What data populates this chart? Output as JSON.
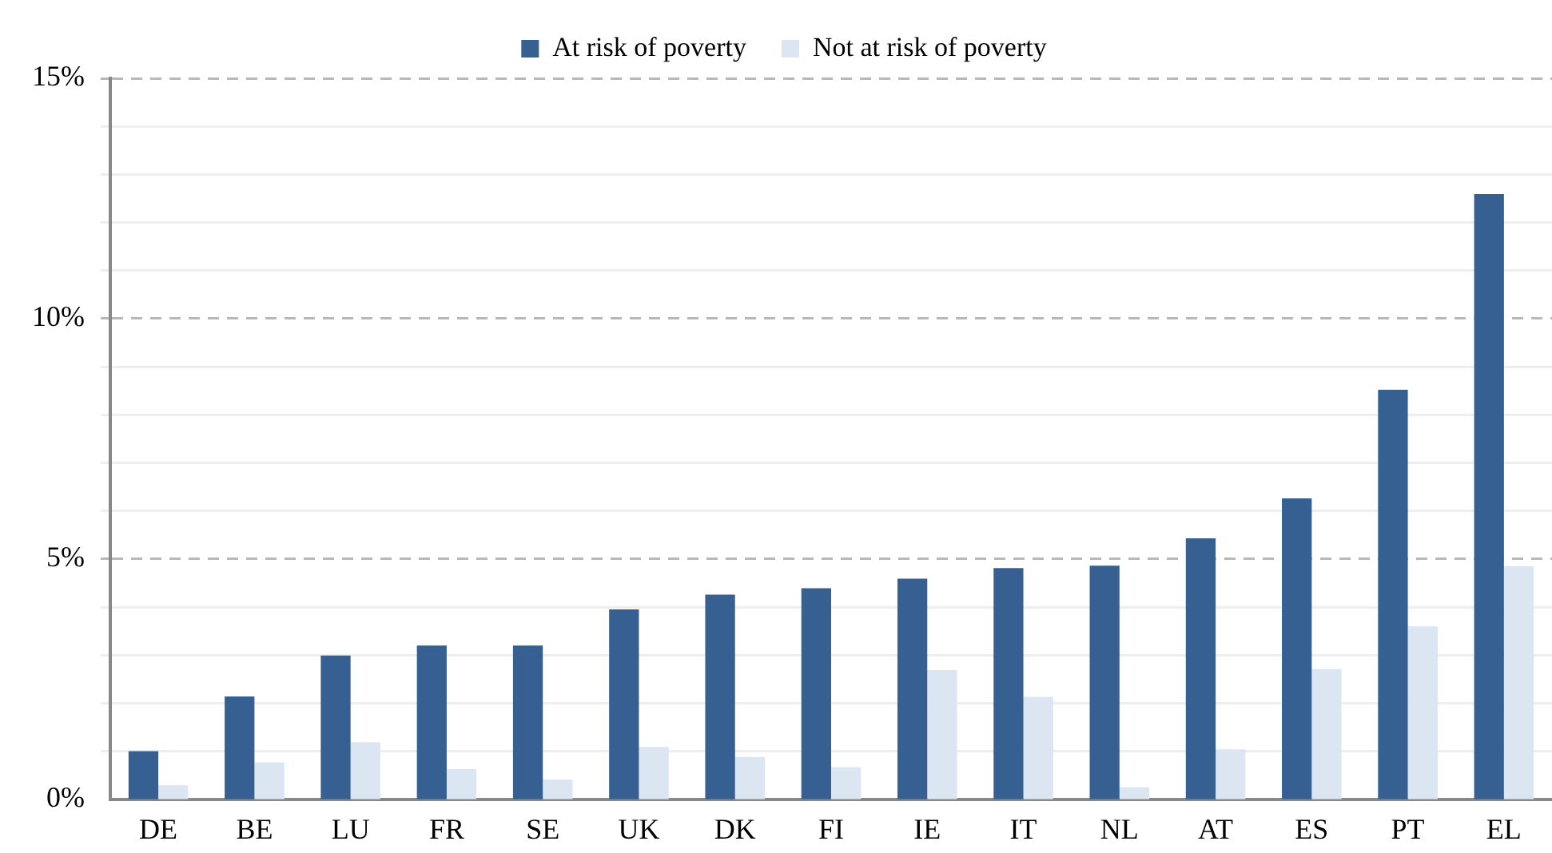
{
  "chart_data": {
    "type": "bar",
    "categories": [
      "DE",
      "BE",
      "LU",
      "FR",
      "SE",
      "UK",
      "DK",
      "FI",
      "IE",
      "IT",
      "NL",
      "AT",
      "ES",
      "PT",
      "EL"
    ],
    "series": [
      {
        "name": "At risk of poverty",
        "color": "#376092",
        "values": [
          1.0,
          2.14,
          2.99,
          3.2,
          3.2,
          3.95,
          4.26,
          4.39,
          4.59,
          4.81,
          4.86,
          5.43,
          6.26,
          8.52,
          12.59
        ]
      },
      {
        "name": "Not at risk of poverty",
        "color": "#dce6f2",
        "values": [
          0.29,
          0.77,
          1.19,
          0.63,
          0.41,
          1.09,
          0.88,
          0.67,
          2.69,
          2.13,
          0.25,
          1.04,
          2.71,
          3.6,
          4.85
        ]
      }
    ],
    "ylim": [
      0,
      15
    ],
    "yticks": [
      {
        "value": 0,
        "label": "0%"
      },
      {
        "value": 1,
        "label": null
      },
      {
        "value": 2,
        "label": null
      },
      {
        "value": 3,
        "label": null
      },
      {
        "value": 4,
        "label": null
      },
      {
        "value": 5,
        "label": "5%"
      },
      {
        "value": 6,
        "label": null
      },
      {
        "value": 7,
        "label": null
      },
      {
        "value": 8,
        "label": null
      },
      {
        "value": 9,
        "label": null
      },
      {
        "value": 10,
        "label": "10%"
      },
      {
        "value": 11,
        "label": null
      },
      {
        "value": 12,
        "label": null
      },
      {
        "value": 13,
        "label": null
      },
      {
        "value": 14,
        "label": null
      },
      {
        "value": 15,
        "label": "15%"
      }
    ],
    "grid": "y",
    "legend": "top"
  }
}
